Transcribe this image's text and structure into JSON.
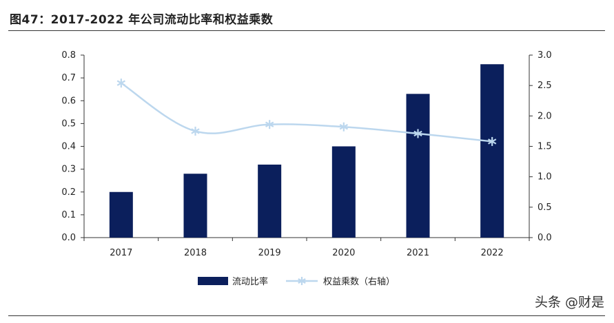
{
  "title": "图47：2017-2022 年公司流动比率和权益乘数",
  "watermark": "头条 @财是",
  "colors": {
    "bar": "#0b1f5c",
    "line": "#bcd7ee",
    "axis": "#333333"
  },
  "chart_data": {
    "type": "bar",
    "categories": [
      "2017",
      "2018",
      "2019",
      "2020",
      "2021",
      "2022"
    ],
    "series": [
      {
        "name": "流动比率",
        "type": "bar",
        "axis": "left",
        "values": [
          0.2,
          0.28,
          0.32,
          0.4,
          0.63,
          0.76
        ]
      },
      {
        "name": "权益乘数（右轴）",
        "type": "line",
        "axis": "right",
        "marker": "asterisk",
        "values": [
          2.54,
          1.75,
          1.86,
          1.82,
          1.71,
          1.58
        ]
      }
    ],
    "y_left": {
      "ylim": [
        0,
        0.8
      ],
      "ticks": [
        "0.0",
        "0.1",
        "0.2",
        "0.3",
        "0.4",
        "0.5",
        "0.6",
        "0.7",
        "0.8"
      ]
    },
    "y_right": {
      "ylim": [
        0,
        3.0
      ],
      "ticks": [
        "0.0",
        "0.5",
        "1.0",
        "1.5",
        "2.0",
        "2.5",
        "3.0"
      ]
    },
    "grid": false,
    "legend": "bottom-center"
  }
}
